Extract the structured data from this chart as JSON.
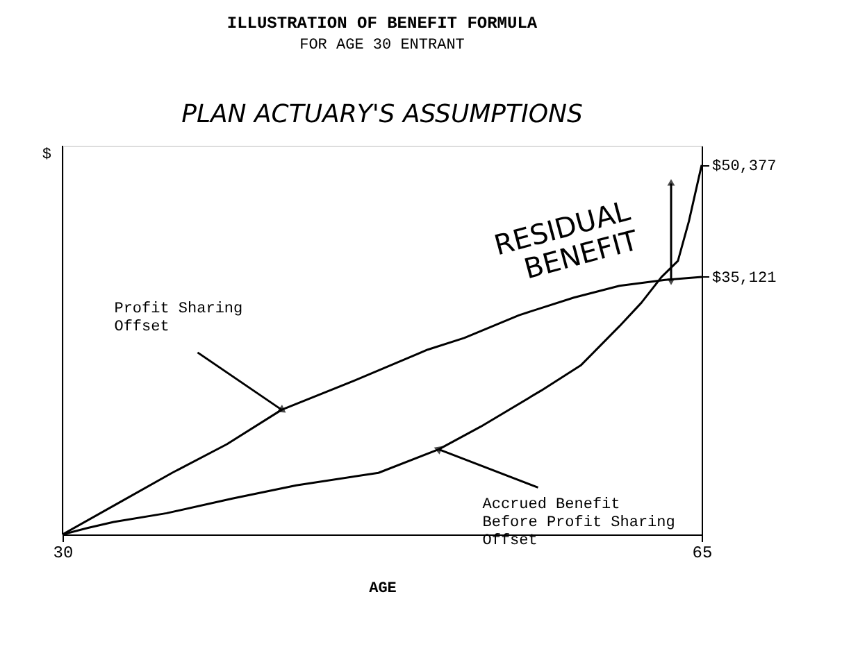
{
  "chart_data": {
    "type": "line",
    "title": "ILLUSTRATION OF BENEFIT FORMULA",
    "subtitle": "FOR AGE 30 ENTRANT",
    "xlabel": "AGE",
    "ylabel": "$",
    "x": [
      30,
      33,
      36,
      39,
      42,
      46,
      50,
      52,
      55,
      58,
      60.5,
      63,
      65
    ],
    "series": [
      {
        "name": "Profit Sharing\nOffset",
        "color": "#000000",
        "values": [
          0,
          4200,
          8400,
          12300,
          17000,
          21000,
          25200,
          26800,
          29900,
          32300,
          33900,
          34700,
          35121
        ]
      },
      {
        "name": "Accrued Benefit\nBefore Profit Sharing\nOffset",
        "color": "#000000",
        "x": [
          30,
          31.4,
          32.8,
          35.7,
          39.3,
          42.8,
          47.3,
          50.6,
          52.9,
          56.2,
          58.4,
          60.5,
          61.7,
          62.8,
          63.7,
          64.3,
          65
        ],
        "values": [
          0,
          900,
          1700,
          2900,
          4900,
          6700,
          8400,
          11600,
          14700,
          19600,
          23100,
          28400,
          31600,
          35100,
          37300,
          42700,
          50377
        ]
      }
    ],
    "xlim": [
      30,
      65
    ],
    "xticks": [
      30,
      65
    ],
    "ylim": [
      0,
      53000
    ],
    "yticks": [
      {
        "value": 35121,
        "label": "$35,121"
      },
      {
        "value": 50377,
        "label": "$50,377"
      }
    ],
    "annotations": [
      "PLAN ACTUARY'S ASSUMPTIONS",
      "RESIDUAL\nBENEFIT"
    ],
    "line_style": "solid",
    "marker": "none"
  }
}
